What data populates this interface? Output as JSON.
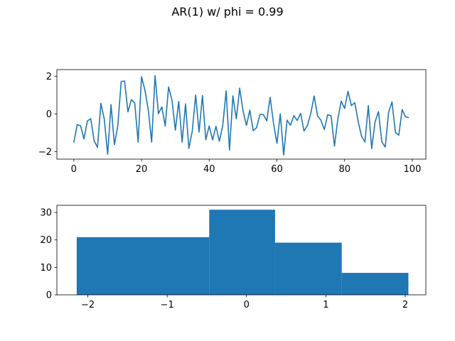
{
  "figure": {
    "title": "AR(1) w/ phi = 0.99"
  },
  "chart_data": [
    {
      "type": "line",
      "title": "",
      "xlabel": "",
      "ylabel": "",
      "xlim": [
        -5,
        104
      ],
      "ylim": [
        -2.4,
        2.35
      ],
      "grid": false,
      "color": "#1f77b4",
      "x_ticks": [
        0,
        20,
        40,
        60,
        80,
        100
      ],
      "y_ticks": [
        -2,
        0,
        2
      ],
      "x_tick_labels": [
        "0",
        "20",
        "40",
        "60",
        "80",
        "100"
      ],
      "y_tick_labels": [
        "−2",
        "0",
        "2"
      ],
      "series": [
        {
          "values": [
            -1.52,
            -0.57,
            -0.63,
            -1.33,
            -0.38,
            -0.25,
            -1.42,
            -1.78,
            0.56,
            -0.27,
            -2.14,
            0.49,
            -1.63,
            -0.63,
            1.72,
            1.74,
            0.11,
            0.76,
            0.58,
            -1.5,
            1.97,
            1.27,
            0.21,
            -1.5,
            2.03,
            0.01,
            0.37,
            -0.64,
            1.43,
            0.73,
            -0.86,
            0.66,
            -1.5,
            0.53,
            -1.83,
            -0.91,
            1.0,
            -0.97,
            0.97,
            -1.37,
            -0.64,
            -1.38,
            -0.66,
            -1.45,
            -0.62,
            1.22,
            -1.92,
            0.96,
            -0.26,
            1.37,
            0.15,
            -0.61,
            0.2,
            -0.89,
            -0.73,
            -0.02,
            -0.04,
            -0.37,
            0.88,
            -0.5,
            -1.56,
            0.0,
            -2.18,
            -0.33,
            -0.6,
            -0.09,
            -0.35,
            0.03,
            -0.91,
            -0.62,
            0.02,
            0.95,
            -0.1,
            -0.33,
            -0.83,
            -0.04,
            -0.1,
            -1.71,
            -0.27,
            0.68,
            0.29,
            1.2,
            0.44,
            0.6,
            -0.4,
            -1.18,
            -1.49,
            0.44,
            -1.84,
            -0.42,
            0.12,
            -1.49,
            -1.76,
            0.09,
            0.64,
            -0.98,
            -1.13,
            0.23,
            -0.16,
            -0.2
          ]
        }
      ]
    },
    {
      "type": "bar",
      "subtype": "histogram",
      "title": "",
      "xlabel": "",
      "ylabel": "",
      "xlim": [
        -2.39,
        2.26
      ],
      "ylim": [
        0,
        32.6
      ],
      "grid": false,
      "color": "#1f77b4",
      "bin_edges": [
        -2.14,
        -0.47,
        0.36,
        1.2,
        2.04
      ],
      "values": [
        21,
        31,
        19,
        8
      ],
      "x_ticks": [
        -2,
        -1,
        0,
        1,
        2
      ],
      "y_ticks": [
        0,
        10,
        20,
        30
      ],
      "x_tick_labels": [
        "−2",
        "−1",
        "0",
        "1",
        "2"
      ],
      "y_tick_labels": [
        "0",
        "10",
        "20",
        "30"
      ]
    }
  ]
}
